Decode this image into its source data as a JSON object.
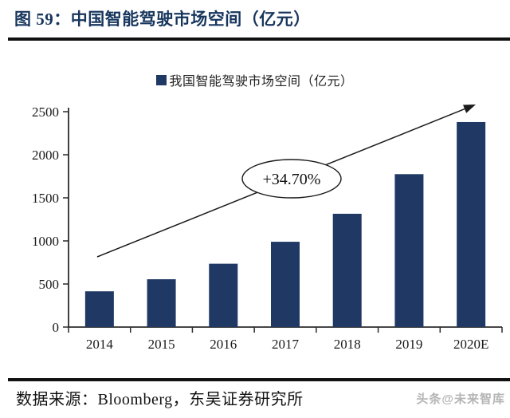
{
  "header": {
    "title": "图 59：中国智能驾驶市场空间（亿元）"
  },
  "chart_data": {
    "type": "bar",
    "title": "图 59：中国智能驾驶市场空间（亿元）",
    "legend": "我国智能驾驶市场空间（亿元）",
    "categories": [
      "2014",
      "2015",
      "2016",
      "2017",
      "2018",
      "2019",
      "2020E"
    ],
    "values": [
      415,
      555,
      735,
      990,
      1315,
      1775,
      2380
    ],
    "xlabel": "",
    "ylabel": "",
    "ylim": [
      0,
      2500
    ],
    "yticks": [
      0,
      500,
      1000,
      1500,
      2000,
      2500
    ],
    "grid": false,
    "legend_position": "top-center",
    "annotation": "+34.70%",
    "colors": {
      "bar": "#1F3864",
      "axis": "#2b2b2b",
      "title": "#17365D",
      "rule": "#111111",
      "annotation_stroke": "#1a1a1a",
      "watermark": "#b5b5b5"
    }
  },
  "footer": {
    "source": "数据来源：Bloomberg，东吴证券研究所",
    "watermark": "头条@未来智库"
  }
}
